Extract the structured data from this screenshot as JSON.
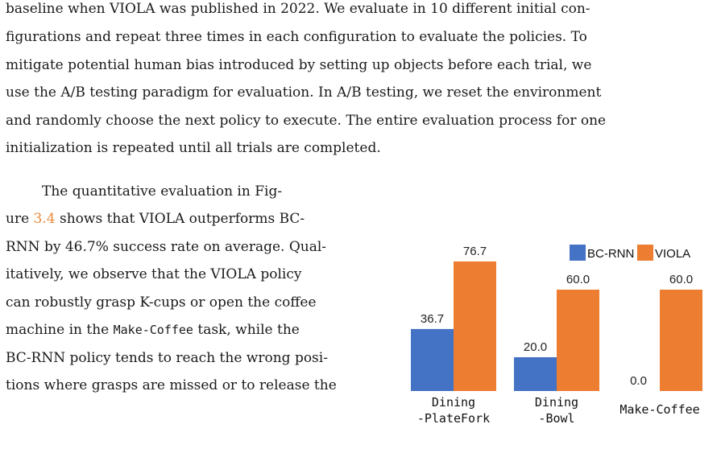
{
  "paragraph1": [
    "baseline when VIOLA was published in 2022. We evaluate in 10 different initial con-",
    "figurations and repeat three times in each configuration to evaluate the policies. To",
    "mitigate potential human bias introduced by setting up objects before each trial, we",
    "use the A/B testing paradigm for evaluation. In A/B testing, we reset the environment",
    "and randomly choose the next policy to execute. The entire evaluation process for one",
    "initialization is repeated until all trials are completed."
  ],
  "paragraph2": {
    "l1": "The quantitative evaluation in Fig-",
    "l2_pre": "ure ",
    "l2_ref": "3.4",
    "l2_post": " shows that VIOLA outperforms BC-",
    "l3": "RNN by 46.7% success rate on average. Qual-",
    "l4": "itatively, we observe that the VIOLA policy",
    "l5": "can robustly grasp K-cups or open the coffee",
    "l6_pre": "machine in the ",
    "l6_code": "Make-Coffee",
    "l6_post": " task, while the",
    "l7": "BC-RNN policy tends to reach the wrong posi-",
    "l8": "tions where grasps are missed or to release the"
  },
  "chart_data": {
    "type": "bar",
    "categories": [
      [
        "Dining",
        "-PlateFork"
      ],
      [
        "Dining",
        "-Bowl"
      ],
      [
        "Make-Coffee"
      ]
    ],
    "series": [
      {
        "name": "BC-RNN",
        "values": [
          36.7,
          20.0,
          0.0
        ],
        "labels": [
          "36.7",
          "20.0",
          "0.0"
        ],
        "color": "#4472c4"
      },
      {
        "name": "VIOLA",
        "values": [
          76.7,
          60.0,
          60.0
        ],
        "labels": [
          "76.7",
          "60.0",
          "60.0"
        ],
        "color": "#ed7d31"
      }
    ],
    "ylim": [
      0,
      80
    ],
    "legend": "top-right"
  }
}
